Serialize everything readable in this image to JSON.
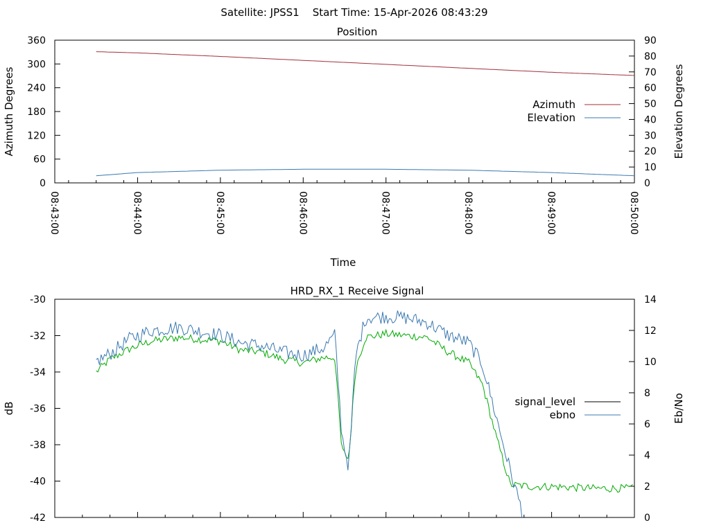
{
  "header": {
    "title": "Satellite: JPSS1    Start Time: 15-Apr-2026 08:43:29"
  },
  "chart_data": [
    {
      "type": "line",
      "title": "Position",
      "xlabel": "Time",
      "ylabel": "Azimuth Degrees",
      "y2label": "Elevation Degrees",
      "x_ticks": [
        "08:43:00",
        "08:44:00",
        "08:45:00",
        "08:46:00",
        "08:47:00",
        "08:48:00",
        "08:49:00",
        "08:50:00"
      ],
      "xlim": [
        "08:43:00",
        "08:50:00"
      ],
      "ylim": [
        0,
        360
      ],
      "y_ticks": [
        "0",
        "60",
        "120",
        "180",
        "240",
        "300",
        "360"
      ],
      "y2lim": [
        0,
        90
      ],
      "y2_ticks": [
        "0",
        "10",
        "20",
        "30",
        "40",
        "50",
        "60",
        "70",
        "80",
        "90"
      ],
      "grid": false,
      "legend": "center-right",
      "series": [
        {
          "name": "Azimuth",
          "axis": "left",
          "color": "#a0303a",
          "x": [
            "08:43:30",
            "08:44:00",
            "08:45:00",
            "08:46:00",
            "08:47:00",
            "08:48:00",
            "08:49:00",
            "08:50:00"
          ],
          "y": [
            331,
            328,
            319,
            309,
            299,
            289,
            279,
            271
          ]
        },
        {
          "name": "Elevation",
          "axis": "right",
          "color": "#3a78b0",
          "x": [
            "08:43:30",
            "08:44:00",
            "08:45:00",
            "08:46:00",
            "08:47:00",
            "08:48:00",
            "08:49:00",
            "08:50:00"
          ],
          "y": [
            4.5,
            6.5,
            8.0,
            8.6,
            8.6,
            8.0,
            6.5,
            4.5
          ]
        }
      ]
    },
    {
      "type": "line",
      "title": "HRD_RX_1 Receive Signal",
      "ylabel": "dB",
      "y2label": "Eb/No",
      "xlim": [
        "08:43:00",
        "08:50:00"
      ],
      "ylim": [
        -42,
        -30
      ],
      "y_ticks": [
        "-30",
        "-32",
        "-34",
        "-36",
        "-38",
        "-40",
        "-42"
      ],
      "y2lim": [
        0,
        14
      ],
      "y2_ticks": [
        "0",
        "2",
        "4",
        "6",
        "8",
        "10",
        "12",
        "14"
      ],
      "grid": false,
      "legend": "center-right",
      "series": [
        {
          "name": "signal_level",
          "axis": "left",
          "color": "#00aa00",
          "x": [
            "08:43:30",
            "08:43:40",
            "08:43:55",
            "08:44:10",
            "08:44:30",
            "08:45:00",
            "08:45:15",
            "08:45:30",
            "08:45:45",
            "08:46:00",
            "08:46:15",
            "08:46:23",
            "08:46:28",
            "08:46:33",
            "08:46:38",
            "08:46:45",
            "08:47:00",
            "08:47:15",
            "08:47:30",
            "08:47:45",
            "08:48:00",
            "08:48:10",
            "08:48:20",
            "08:48:30",
            "08:48:45",
            "08:49:00",
            "08:49:30",
            "08:50:00"
          ],
          "y": [
            -34.0,
            -33.3,
            -32.7,
            -32.3,
            -32.1,
            -32.3,
            -32.8,
            -32.9,
            -33.3,
            -33.5,
            -33.2,
            -33.2,
            -38.3,
            -38.8,
            -33.8,
            -32.1,
            -31.9,
            -32.0,
            -32.1,
            -32.9,
            -33.5,
            -34.7,
            -37.6,
            -40.2,
            -40.3,
            -40.3,
            -40.4,
            -40.4
          ]
        },
        {
          "name": "ebno",
          "axis": "right",
          "color": "#3a78b0",
          "x": [
            "08:43:30",
            "08:43:40",
            "08:43:55",
            "08:44:10",
            "08:44:30",
            "08:45:00",
            "08:45:15",
            "08:45:30",
            "08:45:45",
            "08:46:00",
            "08:46:15",
            "08:46:23",
            "08:46:28",
            "08:46:33",
            "08:46:38",
            "08:46:45",
            "08:47:00",
            "08:47:15",
            "08:47:30",
            "08:47:45",
            "08:48:00",
            "08:48:10",
            "08:48:20",
            "08:48:30",
            "08:48:40"
          ],
          "y": [
            10.0,
            10.5,
            11.5,
            12.0,
            12.2,
            11.7,
            11.2,
            11.0,
            10.6,
            10.4,
            10.9,
            11.7,
            5.3,
            3.2,
            10.3,
            12.8,
            12.9,
            12.8,
            12.5,
            11.7,
            11.2,
            9.8,
            6.4,
            3.0,
            0.0
          ]
        }
      ]
    }
  ]
}
